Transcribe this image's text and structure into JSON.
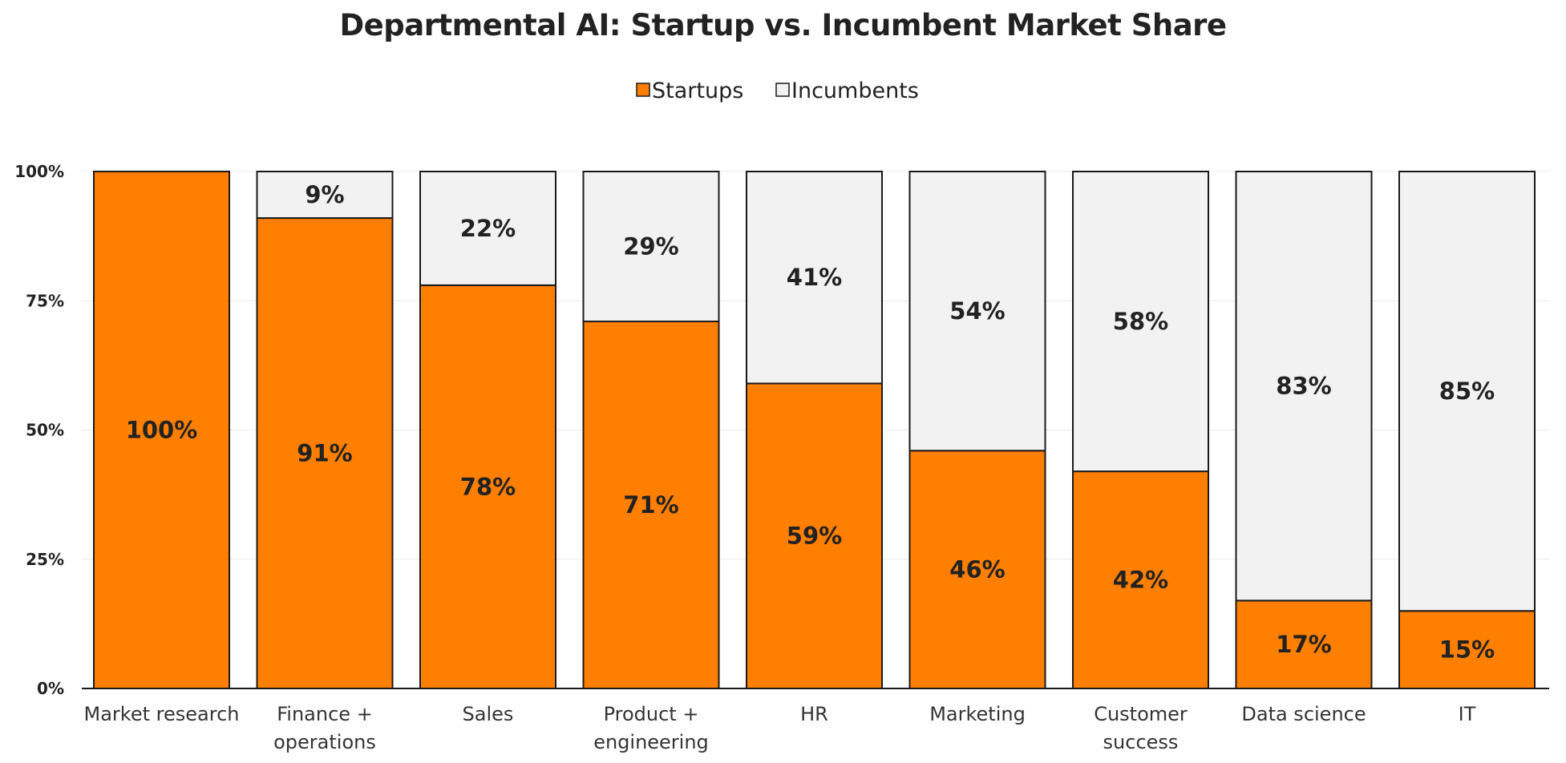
{
  "chart_data": {
    "type": "bar",
    "stacked": true,
    "title": "Departmental AI: Startup vs. Incumbent Market Share",
    "categories": [
      [
        "Market research"
      ],
      [
        "Finance +",
        "operations"
      ],
      [
        "Sales"
      ],
      [
        "Product +",
        "engineering"
      ],
      [
        "HR"
      ],
      [
        "Marketing"
      ],
      [
        "Customer",
        "success"
      ],
      [
        "Data science"
      ],
      [
        "IT"
      ]
    ],
    "series": [
      {
        "name": "Startups",
        "color": "#FF7F00",
        "values": [
          100,
          91,
          78,
          71,
          59,
          46,
          42,
          17,
          15
        ],
        "labels": [
          "100%",
          "91%",
          "78%",
          "71%",
          "59%",
          "46%",
          "42%",
          "17%",
          "15%"
        ]
      },
      {
        "name": "Incumbents",
        "color": "#F2F2F2",
        "values": [
          0,
          9,
          22,
          29,
          41,
          54,
          58,
          83,
          85
        ],
        "labels": [
          "",
          "9%",
          "22%",
          "29%",
          "41%",
          "54%",
          "58%",
          "83%",
          "85%"
        ]
      }
    ],
    "yticks": [
      {
        "value": 0,
        "label": "0%"
      },
      {
        "value": 25,
        "label": "25%"
      },
      {
        "value": 50,
        "label": "50%"
      },
      {
        "value": 75,
        "label": "75%"
      },
      {
        "value": 100,
        "label": "100%"
      }
    ],
    "ylim": [
      0,
      100
    ],
    "xlabel": "",
    "ylabel": "",
    "legend_position": "top-center",
    "grid": true
  }
}
